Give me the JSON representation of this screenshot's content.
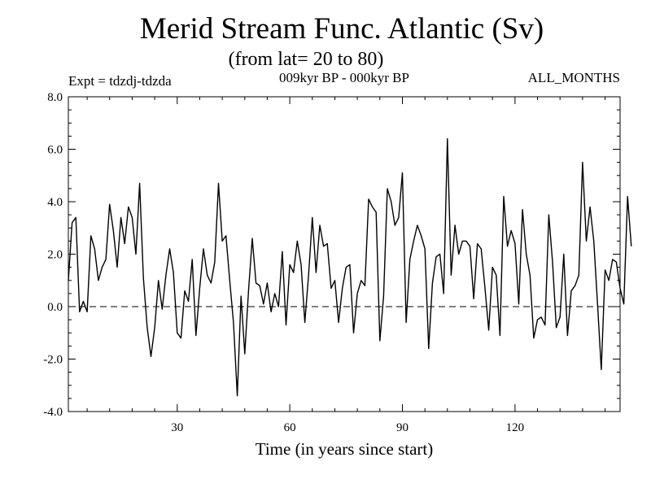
{
  "chart_data": {
    "type": "line",
    "title": "Merid Stream Func. Atlantic (Sv)",
    "subtitle": "(from lat= 20 to 80)",
    "left_label": "Expt = tdzdj-tdzda",
    "center_label": "009kyr BP - 000kyr BP",
    "right_label": "ALL_MONTHS",
    "xlabel": "Time (in years since start)",
    "ylabel": "",
    "xlim": [
      1,
      148
    ],
    "ylim": [
      -4.0,
      8.0
    ],
    "x_ticks": [
      30,
      60,
      90,
      120
    ],
    "x_tick_labels": [
      "30",
      "60",
      "90",
      "120"
    ],
    "y_ticks": [
      -4,
      -2,
      0,
      2,
      4,
      6,
      8
    ],
    "y_tick_labels": [
      "-4.0",
      "-2.0",
      "0.0",
      "2.0",
      "4.0",
      "6.0",
      "8.0"
    ],
    "reference_line": 0.0,
    "series": [
      {
        "name": "tdzdj-tdzda",
        "x_start": 1,
        "values": [
          1.0,
          3.2,
          3.4,
          -0.2,
          0.2,
          -0.2,
          2.7,
          2.2,
          1.0,
          1.5,
          1.8,
          3.9,
          2.9,
          1.5,
          3.4,
          2.4,
          3.8,
          3.4,
          2.0,
          4.7,
          1.1,
          -0.8,
          -1.9,
          -0.8,
          1.0,
          -0.1,
          1.2,
          2.2,
          1.3,
          -1.0,
          -1.2,
          0.6,
          0.2,
          1.8,
          -1.1,
          0.7,
          2.2,
          1.2,
          0.9,
          1.7,
          4.7,
          2.5,
          2.7,
          1.0,
          -0.6,
          -3.4,
          0.4,
          -1.8,
          0.6,
          2.6,
          0.9,
          0.8,
          0.1,
          0.9,
          -0.2,
          0.5,
          0.0,
          2.1,
          -0.7,
          1.6,
          1.3,
          2.5,
          1.6,
          -0.6,
          1.2,
          3.4,
          1.3,
          3.1,
          2.3,
          2.4,
          0.7,
          1.0,
          -0.6,
          0.7,
          1.5,
          1.6,
          -1.0,
          0.5,
          1.0,
          0.8,
          4.1,
          3.8,
          3.6,
          -1.3,
          0.4,
          4.5,
          4.0,
          3.1,
          3.4,
          5.1,
          -0.6,
          1.8,
          2.5,
          3.1,
          2.7,
          2.2,
          -1.6,
          0.9,
          1.9,
          2.0,
          0.5,
          6.4,
          1.2,
          3.1,
          2.0,
          2.5,
          2.5,
          2.3,
          0.3,
          2.4,
          2.2,
          0.7,
          -0.9,
          1.5,
          1.2,
          -1.1,
          4.2,
          2.3,
          2.9,
          2.4,
          0.1,
          3.7,
          2.0,
          1.2,
          -1.2,
          -0.5,
          -0.4,
          -0.7,
          3.5,
          1.7,
          -0.8,
          -0.4,
          2.0,
          -1.1,
          0.6,
          0.8,
          1.2,
          5.5,
          2.5,
          3.8,
          2.5,
          0.1,
          -2.4,
          1.4,
          1.0,
          1.8,
          1.7,
          0.7,
          0.1,
          4.2,
          2.3
        ]
      }
    ]
  }
}
